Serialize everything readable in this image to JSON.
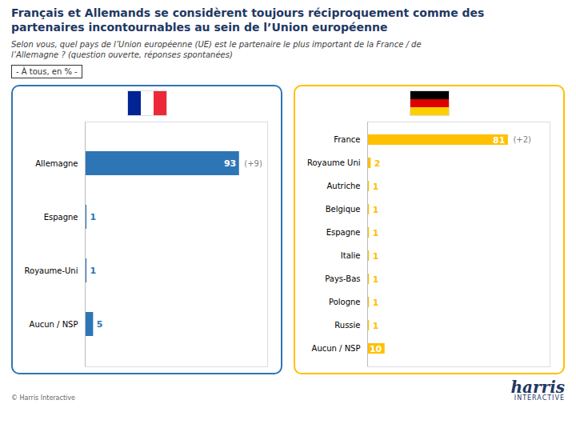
{
  "title": "Français et Allemands se considèrent toujours réciproquement comme des\npartenaires incontournables au sein de l’Union européenne",
  "subtitle": "Selon vous, quel pays de l’Union européenne (UE) est le partenaire le plus important de la France  / de\nl’Allemagne ? (question ouverte, réponses spontanées)",
  "annotations": [
    "- À tous, en % -",
    "© Harris Interactive",
    "harris",
    "INTERACTIVE"
  ],
  "chart_data": [
    {
      "type": "bar",
      "orientation": "horizontal",
      "categories": [
        "Allemagne",
        "Espagne",
        "Royaume-Uni",
        "Aucun / NSP"
      ],
      "values": [
        93,
        1,
        1,
        5
      ],
      "color": "#2E75B6",
      "xlim": [
        0,
        110
      ],
      "tick_labels": "y",
      "grid": false,
      "data_labels": true,
      "annotations": [
        {
          "text": "(+9)",
          "category": "Allemagne"
        }
      ]
    },
    {
      "type": "bar",
      "orientation": "horizontal",
      "categories": [
        "France",
        "Royaume Uni",
        "Autriche",
        "Belgique",
        "Espagne",
        "Italie",
        "Pays-Bas",
        "Pologne",
        "Russie",
        "Aucun / NSP"
      ],
      "values": [
        81,
        2,
        1,
        1,
        1,
        1,
        1,
        1,
        1,
        10
      ],
      "color": "#FFC000",
      "xlim": [
        0,
        105
      ],
      "tick_labels": "y",
      "grid": false,
      "data_labels": true,
      "annotations": [
        {
          "text": "(+2)",
          "category": "France"
        }
      ]
    }
  ]
}
